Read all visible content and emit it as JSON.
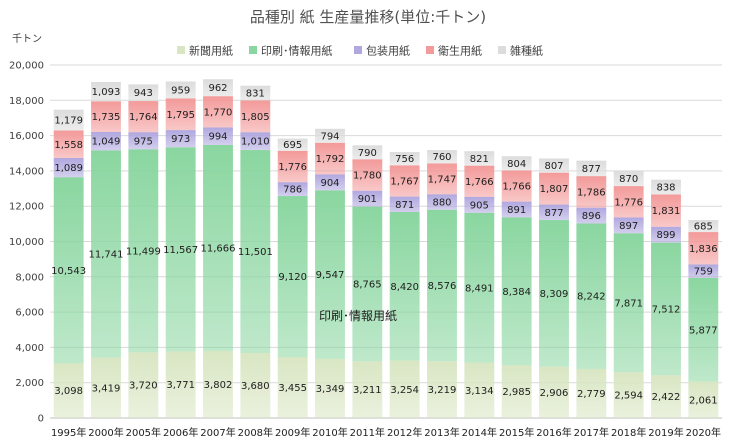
{
  "chart_data": {
    "type": "stacked-bar",
    "title": "品種別 紙 生産量推移(単位:千トン)",
    "y_unit": "千トン",
    "ylim": [
      0,
      20000
    ],
    "yticks": [
      "0",
      "2,000",
      "4,000",
      "6,000",
      "8,000",
      "10,000",
      "12,000",
      "14,000",
      "16,000",
      "18,000",
      "20,000"
    ],
    "categories": [
      "1995年",
      "2000年",
      "2005年",
      "2006年",
      "2007年",
      "2008年",
      "2009年",
      "2010年",
      "2011年",
      "2012年",
      "2013年",
      "2014年",
      "2015年",
      "2016年",
      "2017年",
      "2018年",
      "2019年",
      "2020年"
    ],
    "legend_position": "top",
    "annotation": "印刷･情報用紙",
    "series": [
      {
        "name": "新聞用紙",
        "color": "#d9e6c3",
        "label_color": "#202020",
        "values": [
          3098,
          3419,
          3720,
          3771,
          3802,
          3680,
          3455,
          3349,
          3211,
          3254,
          3219,
          3134,
          2985,
          2906,
          2779,
          2594,
          2422,
          2061
        ],
        "labels": [
          "3,098",
          "3,419",
          "3,720",
          "3,771",
          "3,802",
          "3,680",
          "3,455",
          "3,349",
          "3,211",
          "3,254",
          "3,219",
          "3,134",
          "2,985",
          "2,906",
          "2,779",
          "2,594",
          "2,422",
          "2,061"
        ]
      },
      {
        "name": "印刷･情報用紙",
        "color": "#8ad6a0",
        "label_color": "#202020",
        "values": [
          10543,
          11741,
          11499,
          11567,
          11666,
          11501,
          9120,
          9547,
          8765,
          8420,
          8576,
          8491,
          8384,
          8309,
          8242,
          7871,
          7512,
          5877
        ],
        "labels": [
          "10,543",
          "11,741",
          "11,499",
          "11,567",
          "11,666",
          "11,501",
          "9,120",
          "9,547",
          "8,765",
          "8,420",
          "8,576",
          "8,491",
          "8,384",
          "8,309",
          "8,242",
          "7,871",
          "7,512",
          "5,877"
        ]
      },
      {
        "name": "包装用紙",
        "color": "#b0a8df",
        "label_color": "#ffffff",
        "values": [
          1089,
          1049,
          975,
          973,
          994,
          1010,
          786,
          904,
          901,
          871,
          880,
          905,
          891,
          877,
          896,
          897,
          899,
          759
        ],
        "labels": [
          "1,089",
          "1,049",
          "975",
          "973",
          "994",
          "1,010",
          "786",
          "904",
          "901",
          "871",
          "880",
          "905",
          "891",
          "877",
          "896",
          "897",
          "899",
          "759"
        ]
      },
      {
        "name": "衛生用紙",
        "color": "#f39a9a",
        "label_color": "#202020",
        "values": [
          1558,
          1735,
          1764,
          1795,
          1770,
          1805,
          1776,
          1792,
          1780,
          1767,
          1747,
          1766,
          1766,
          1807,
          1786,
          1776,
          1831,
          1836
        ],
        "labels": [
          "1,558",
          "1,735",
          "1,764",
          "1,795",
          "1,770",
          "1,805",
          "1,776",
          "1,792",
          "1,780",
          "1,767",
          "1,747",
          "1,766",
          "1,766",
          "1,807",
          "1,786",
          "1,776",
          "1,831",
          "1,836"
        ]
      },
      {
        "name": "雑種紙",
        "color": "#dcdcdc",
        "label_color": "#202020",
        "values": [
          1179,
          1093,
          943,
          959,
          962,
          831,
          695,
          794,
          790,
          756,
          760,
          821,
          804,
          807,
          877,
          870,
          838,
          685
        ],
        "labels": [
          "1,179",
          "1,093",
          "943",
          "959",
          "962",
          "831",
          "695",
          "794",
          "790",
          "756",
          "760",
          "821",
          "804",
          "807",
          "877",
          "870",
          "838",
          "685"
        ]
      }
    ]
  }
}
